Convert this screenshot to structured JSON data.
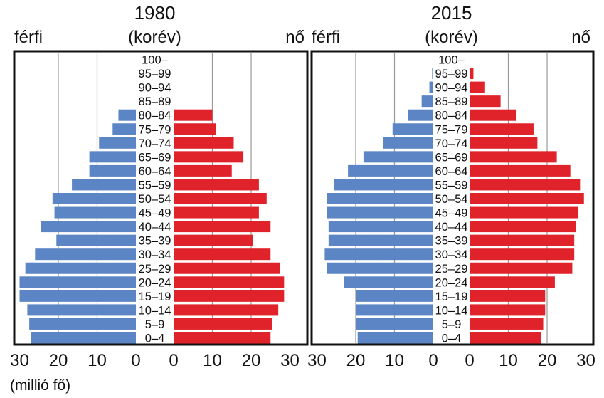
{
  "unit_label": "(millió fő)",
  "chart_data": [
    {
      "type": "bar",
      "title": "1980",
      "left_label": "férfi",
      "center_label": "(korév)",
      "right_label": "nő",
      "categories": [
        "100–",
        "95–99",
        "90–94",
        "85–89",
        "80–84",
        "75–79",
        "70–74",
        "65–69",
        "60–64",
        "55–59",
        "50–54",
        "45–49",
        "40–44",
        "35–39",
        "30–34",
        "25–29",
        "20–24",
        "15–19",
        "10–14",
        "5–9",
        "0–4"
      ],
      "series": [
        {
          "name": "férfi",
          "color": "#5b85c4",
          "values": [
            0,
            0,
            0,
            0,
            4.5,
            6.0,
            9.5,
            12.0,
            12.0,
            16.5,
            21.5,
            21.0,
            24.5,
            20.5,
            26.0,
            28.5,
            30.0,
            30.0,
            28.0,
            27.5,
            27.0
          ]
        },
        {
          "name": "nő",
          "color": "#e0232b",
          "values": [
            0,
            0,
            0,
            0,
            10.0,
            11.0,
            15.5,
            18.0,
            15.0,
            22.0,
            24.0,
            22.0,
            25.0,
            20.5,
            25.0,
            27.5,
            28.5,
            28.5,
            27.0,
            25.5,
            25.0
          ]
        }
      ],
      "left_ticks": [
        30,
        20,
        10,
        0
      ],
      "right_ticks": [
        0,
        10,
        20,
        30
      ],
      "xlim": [
        0,
        30
      ],
      "grid": true
    },
    {
      "type": "bar",
      "title": "2015",
      "left_label": "férfi",
      "center_label": "(korév)",
      "right_label": "nő",
      "categories": [
        "100–",
        "95–99",
        "90–94",
        "85–89",
        "80–84",
        "75–79",
        "70–74",
        "65–69",
        "60–64",
        "55–59",
        "50–54",
        "45–49",
        "40–44",
        "35–39",
        "30–34",
        "25–29",
        "20–24",
        "15–19",
        "10–14",
        "5–9",
        "0–4"
      ],
      "series": [
        {
          "name": "férfi",
          "color": "#5b85c4",
          "values": [
            0,
            0.3,
            1.0,
            3.0,
            6.5,
            10.5,
            13.0,
            18.0,
            22.0,
            25.5,
            27.5,
            27.5,
            27.0,
            27.0,
            28.0,
            27.5,
            23.0,
            20.0,
            20.0,
            20.0,
            19.5
          ]
        },
        {
          "name": "nő",
          "color": "#e0232b",
          "values": [
            0,
            1.0,
            4.0,
            8.0,
            12.0,
            16.5,
            17.5,
            22.5,
            26.0,
            28.5,
            29.5,
            28.0,
            27.5,
            27.0,
            27.0,
            26.5,
            22.0,
            19.5,
            19.5,
            19.0,
            18.5
          ]
        }
      ],
      "left_ticks": [
        30,
        20,
        10,
        0
      ],
      "right_ticks": [
        0,
        10,
        20,
        30
      ],
      "xlim": [
        0,
        30
      ],
      "grid": true
    }
  ]
}
